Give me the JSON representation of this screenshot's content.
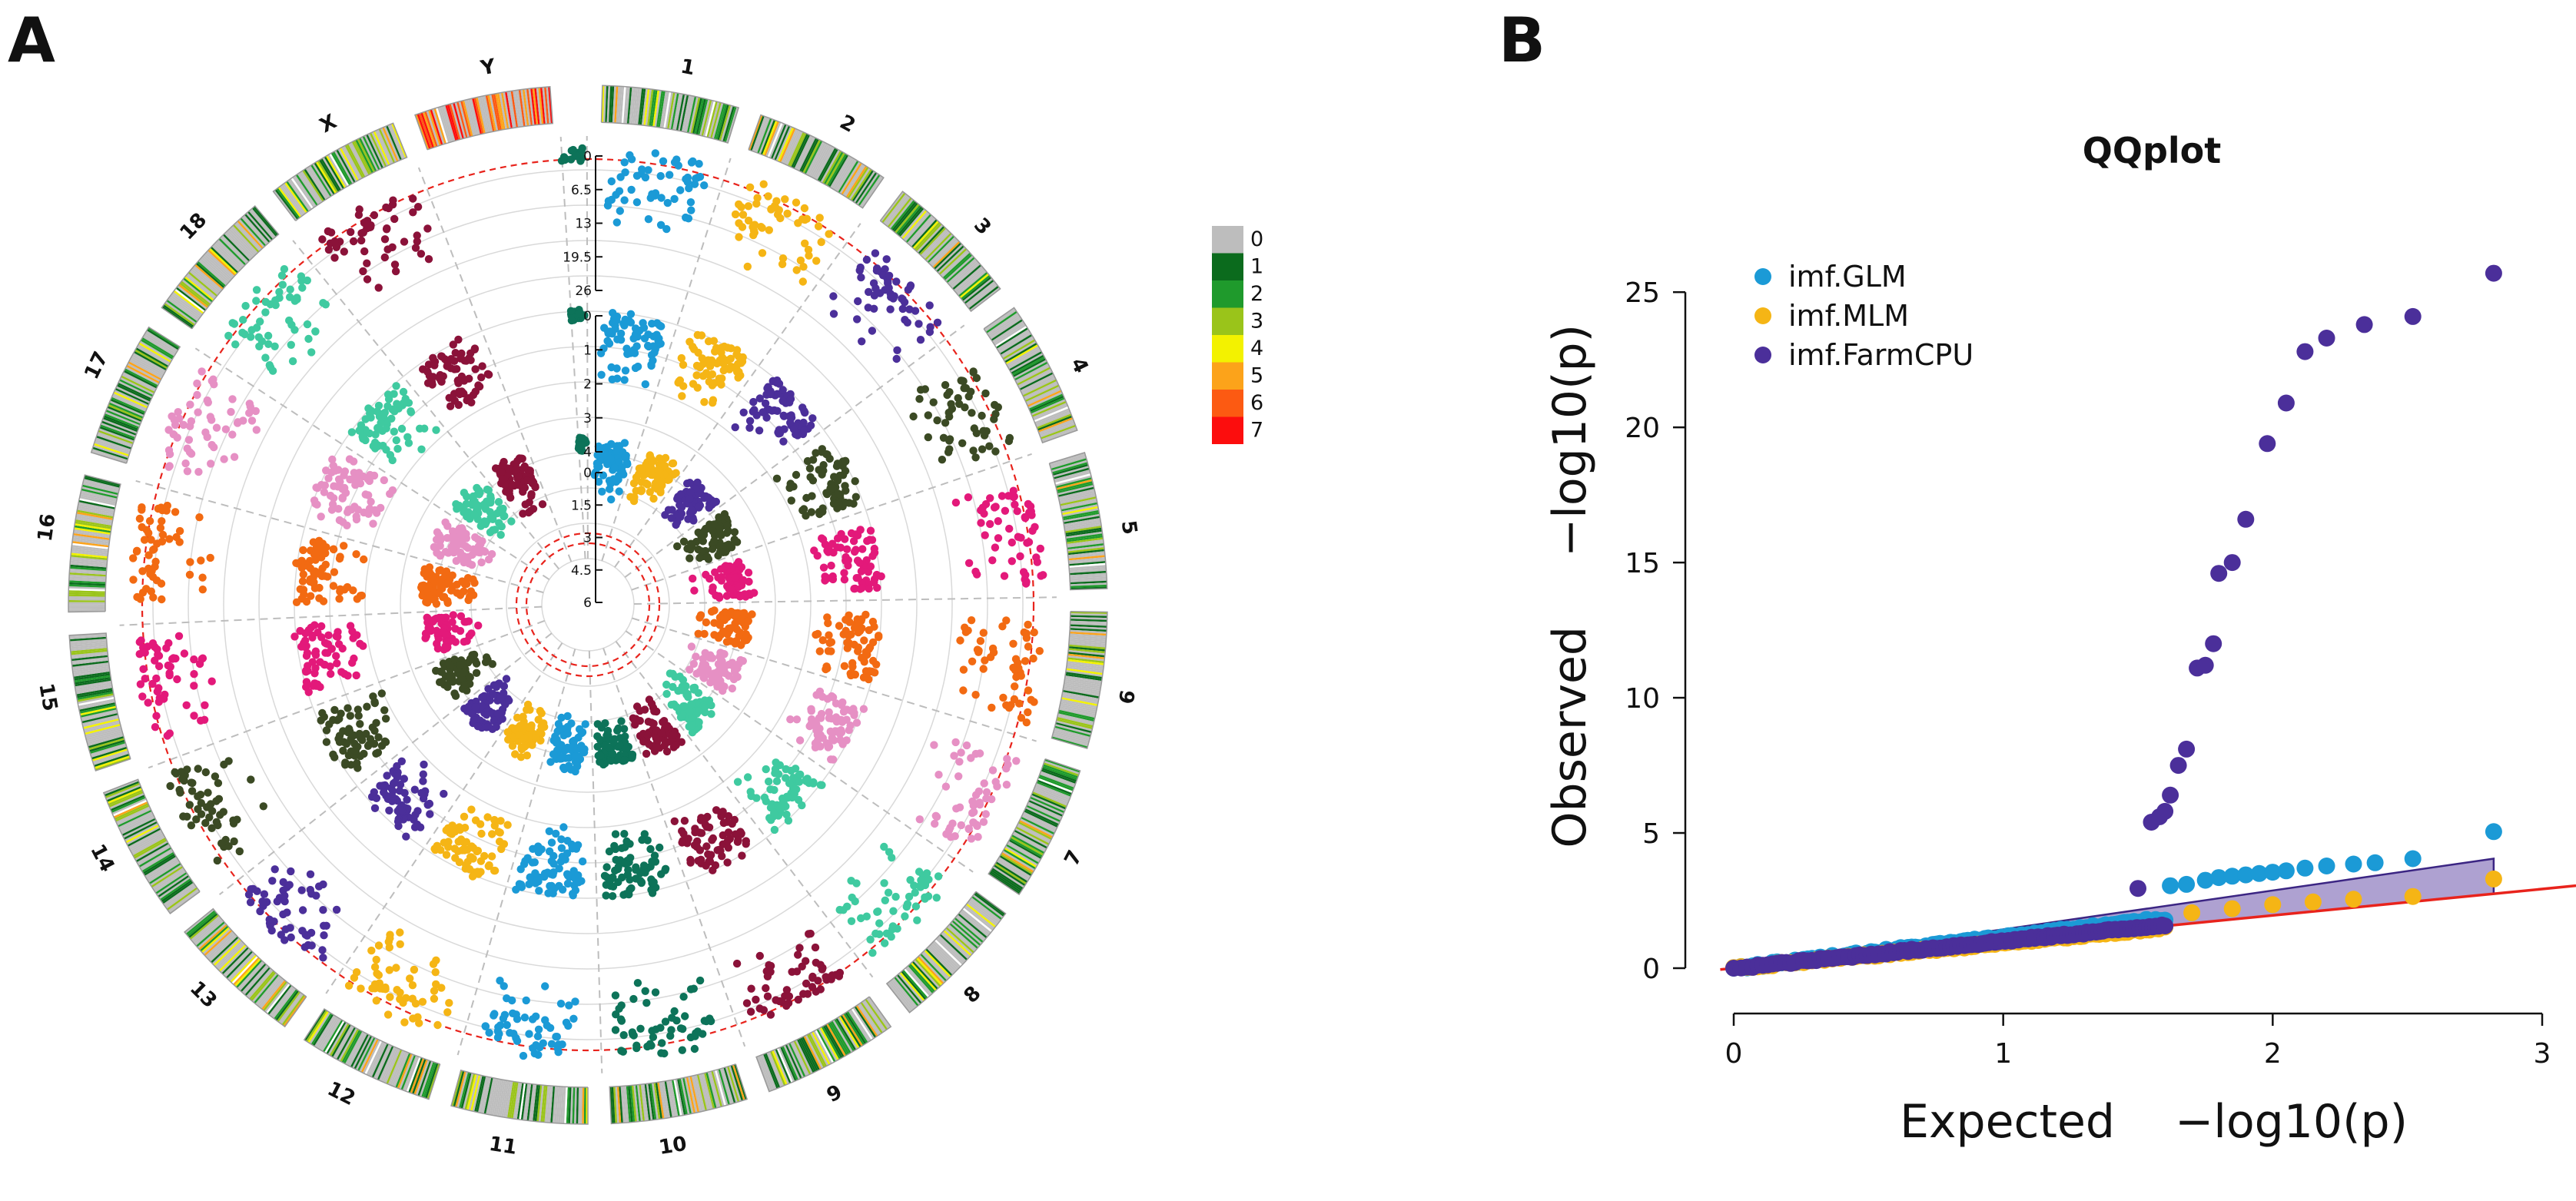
{
  "panel_labels": {
    "a": "A",
    "b": "B"
  },
  "chart_data": [
    {
      "type": "scatter",
      "subtype": "circular-manhattan",
      "panel": "A",
      "chromosomes": [
        "1",
        "2",
        "3",
        "4",
        "5",
        "6",
        "7",
        "8",
        "9",
        "10",
        "11",
        "12",
        "13",
        "14",
        "15",
        "16",
        "17",
        "18",
        "X",
        "Y"
      ],
      "chromosome_colors": [
        "#1b9ad6",
        "#f5b515",
        "#4b2f9a",
        "#3b4a24",
        "#e3197a",
        "#f26a12",
        "#e690c4",
        "#3fcaa0",
        "#8b1239",
        "#0d7359"
      ],
      "rings": [
        {
          "trait": "imf.FarmCPU",
          "ticks": [
            "0",
            "6.5",
            "13",
            "19.5",
            "26"
          ],
          "threshold_color": "#e8231c"
        },
        {
          "trait": "imf.MLM",
          "ticks": [
            "0",
            "1",
            "2",
            "3",
            "4"
          ]
        },
        {
          "trait": "imf.GLM",
          "ticks": [
            "0",
            "1.5",
            "3",
            "4.5",
            "6"
          ],
          "threshold_color": "#e8231c"
        }
      ],
      "density_legend": {
        "labels": [
          "0",
          "1",
          "2",
          "3",
          "4",
          "5",
          "6",
          "7"
        ],
        "colors": [
          "#bdbdbd",
          "#0b6b1d",
          "#1f9a2c",
          "#9ac41a",
          "#f3f200",
          "#fca31a",
          "#fc5a12",
          "#fc0d0d"
        ]
      }
    },
    {
      "type": "scatter",
      "subtype": "qqplot",
      "panel": "B",
      "title": "QQplot",
      "xlabel": "Expected",
      "ylabel": "Observed",
      "axis_expression": "−log10(p)",
      "xlim": [
        0,
        3
      ],
      "ylim": [
        0,
        26
      ],
      "xticks": [
        "0",
        "1",
        "2",
        "3"
      ],
      "yticks": [
        "0",
        "5",
        "10",
        "15",
        "20",
        "25"
      ],
      "series": [
        {
          "name": "imf.GLM",
          "color": "#1b9ad6",
          "tail": [
            [
              1.62,
              3.05
            ],
            [
              1.68,
              3.1
            ],
            [
              1.75,
              3.25
            ],
            [
              1.8,
              3.35
            ],
            [
              1.85,
              3.4
            ],
            [
              1.9,
              3.45
            ],
            [
              1.95,
              3.5
            ],
            [
              2.0,
              3.55
            ],
            [
              2.05,
              3.6
            ],
            [
              2.12,
              3.7
            ],
            [
              2.2,
              3.78
            ],
            [
              2.3,
              3.85
            ],
            [
              2.38,
              3.9
            ],
            [
              2.52,
              4.05
            ],
            [
              2.82,
              5.05
            ]
          ]
        },
        {
          "name": "imf.MLM",
          "color": "#f5b515",
          "tail": [
            [
              1.7,
              2.05
            ],
            [
              1.85,
              2.2
            ],
            [
              2.0,
              2.35
            ],
            [
              2.15,
              2.45
            ],
            [
              2.3,
              2.55
            ],
            [
              2.52,
              2.65
            ],
            [
              2.82,
              3.3
            ]
          ]
        },
        {
          "name": "imf.FarmCPU",
          "color": "#4b2f9a",
          "tail": [
            [
              1.5,
              2.95
            ],
            [
              1.55,
              5.4
            ],
            [
              1.58,
              5.6
            ],
            [
              1.6,
              5.8
            ],
            [
              1.62,
              6.4
            ],
            [
              1.65,
              7.5
            ],
            [
              1.68,
              8.1
            ],
            [
              1.72,
              11.1
            ],
            [
              1.75,
              11.2
            ],
            [
              1.78,
              12.0
            ],
            [
              1.8,
              14.6
            ],
            [
              1.85,
              15.0
            ],
            [
              1.9,
              16.6
            ],
            [
              1.98,
              19.4
            ],
            [
              2.05,
              20.9
            ],
            [
              2.12,
              22.8
            ],
            [
              2.2,
              23.3
            ],
            [
              2.34,
              23.8
            ],
            [
              2.52,
              24.1
            ],
            [
              2.82,
              25.7
            ]
          ]
        }
      ],
      "reference_line_color": "#e8231c",
      "confidence_band_color": "#4b2f9a"
    }
  ]
}
